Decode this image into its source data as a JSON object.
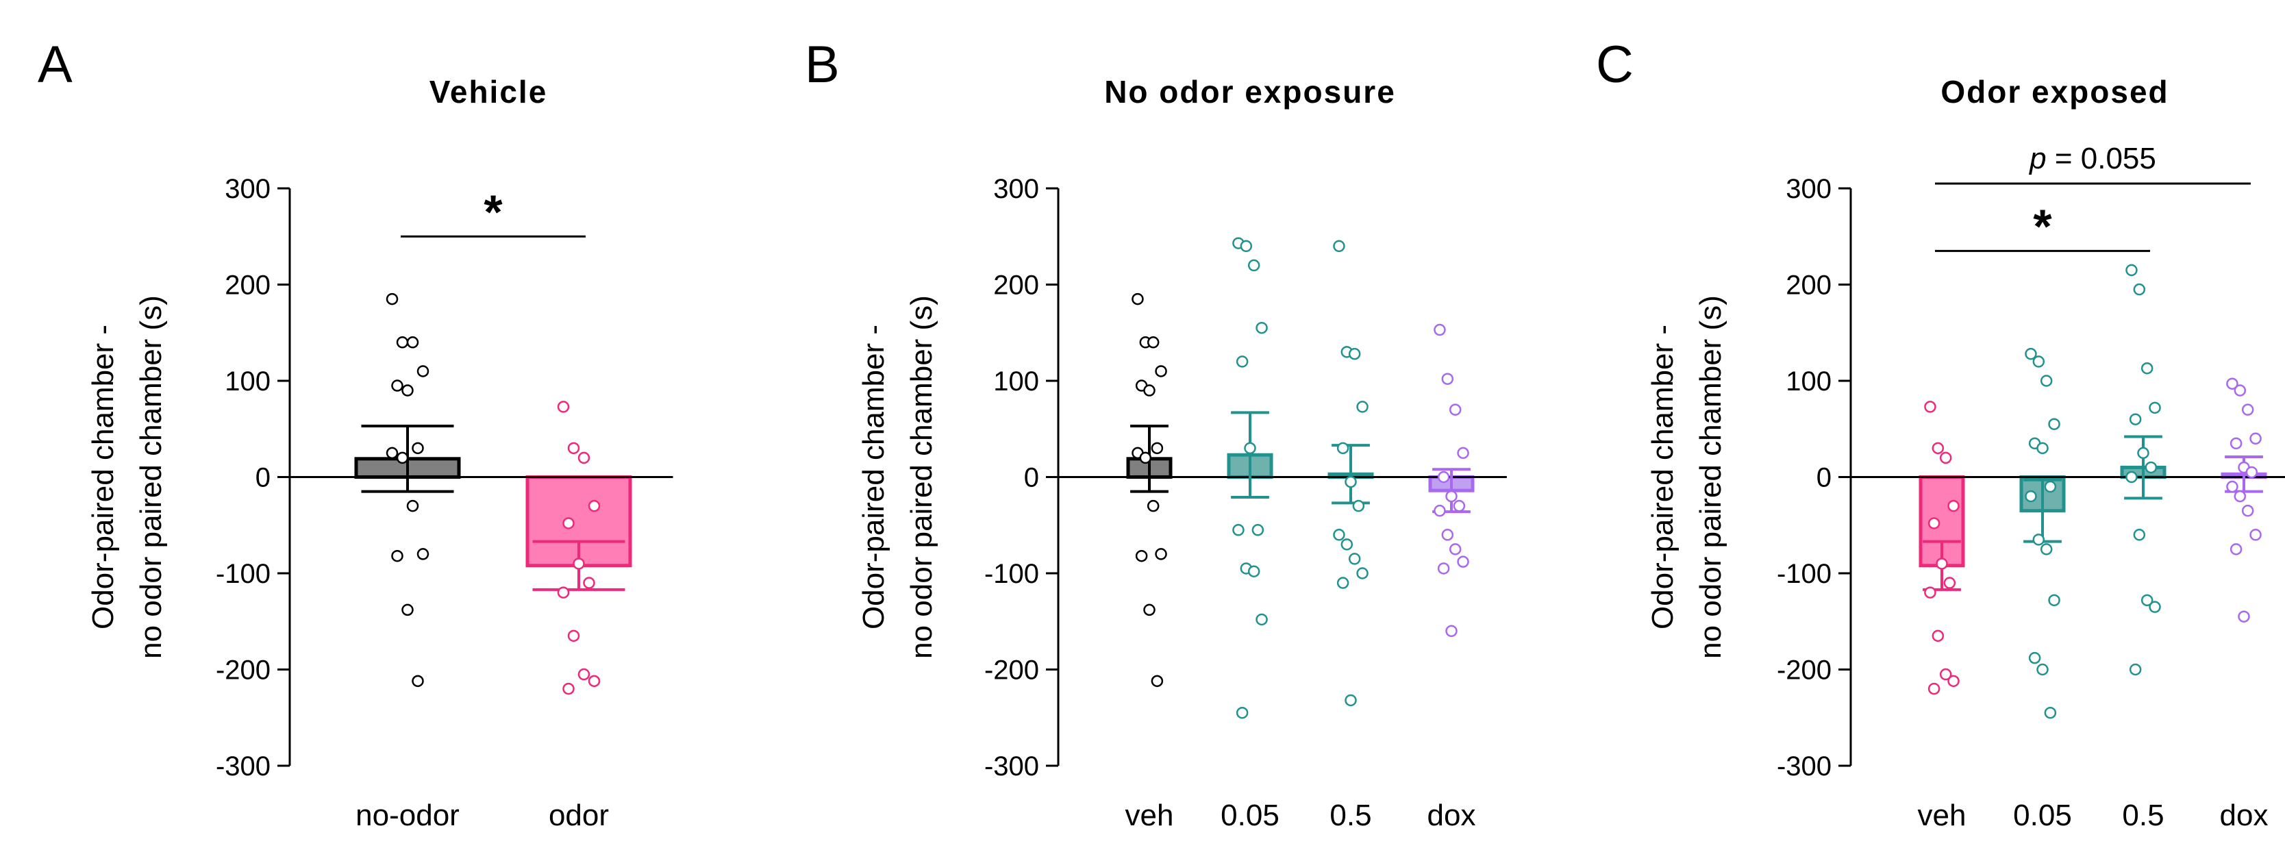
{
  "figure": {
    "y_axis_label_line1": "Odor-paired chamber -",
    "y_axis_label_line2": "no odor paired chamber (s)"
  },
  "chart_data": [
    {
      "type": "bar",
      "panel_letter": "A",
      "title": "Vehicle",
      "ylim": [
        -300,
        300
      ],
      "yticks": [
        300,
        200,
        100,
        0,
        -100,
        -200,
        -300
      ],
      "ytick_labels": [
        "300",
        "200",
        "100",
        "0",
        "-100",
        "-200",
        "-300"
      ],
      "categories": [
        "no-odor",
        "odor"
      ],
      "bars": [
        {
          "label": "no-odor",
          "mean": 19,
          "sem": 34,
          "fill": "#808080",
          "stroke": "#000000",
          "points": [
            185,
            140,
            140,
            110,
            95,
            90,
            30,
            25,
            20,
            -30,
            -80,
            -82,
            -138,
            -212
          ]
        },
        {
          "label": "odor",
          "mean": -92,
          "sem": 25,
          "fill": "#ff7eb6",
          "stroke": "#f0287a",
          "points": [
            73,
            30,
            20,
            -30,
            -48,
            -90,
            -110,
            -120,
            -165,
            -205,
            -212,
            -220
          ]
        }
      ],
      "significance": [
        {
          "from": "no-odor",
          "to": "odor",
          "text": "*",
          "y": 250
        }
      ]
    },
    {
      "type": "bar",
      "panel_letter": "B",
      "title": "No odor exposure",
      "ylim": [
        -300,
        300
      ],
      "yticks": [
        300,
        200,
        100,
        0,
        -100,
        -200,
        -300
      ],
      "ytick_labels": [
        "300",
        "200",
        "100",
        "0",
        "-100",
        "-200",
        "-300"
      ],
      "categories": [
        "veh",
        "0.05",
        "0.5",
        "dox"
      ],
      "bars": [
        {
          "label": "veh",
          "mean": 19,
          "sem": 34,
          "fill": "#808080",
          "stroke": "#000000",
          "points": [
            185,
            140,
            140,
            110,
            95,
            90,
            30,
            25,
            20,
            -30,
            -80,
            -82,
            -138,
            -212
          ]
        },
        {
          "label": "0.05",
          "mean": 23,
          "sem": 44,
          "fill": "#6fb2ad",
          "stroke": "#21928d",
          "points": [
            243,
            240,
            220,
            155,
            120,
            30,
            -55,
            -55,
            -95,
            -98,
            -148,
            -245
          ]
        },
        {
          "label": "0.5",
          "mean": 3,
          "sem": 30,
          "fill": "#6fb2ad",
          "stroke": "#21928d",
          "points": [
            240,
            130,
            128,
            73,
            30,
            -5,
            -30,
            -60,
            -70,
            -85,
            -100,
            -110,
            -232
          ]
        },
        {
          "label": "dox",
          "mean": -14,
          "sem": 22,
          "fill": "#c0a0f0",
          "stroke": "#a868f0",
          "points": [
            153,
            102,
            70,
            25,
            0,
            -20,
            -30,
            -35,
            -60,
            -75,
            -88,
            -95,
            -160
          ]
        }
      ],
      "significance": []
    },
    {
      "type": "bar",
      "panel_letter": "C",
      "title": "Odor exposed",
      "ylim": [
        -300,
        300
      ],
      "yticks": [
        300,
        200,
        100,
        0,
        -100,
        -200,
        -300
      ],
      "ytick_labels": [
        "300",
        "200",
        "100",
        "0",
        "-100",
        "-200",
        "-300"
      ],
      "categories": [
        "veh",
        "0.05",
        "0.5",
        "dox"
      ],
      "bars": [
        {
          "label": "veh",
          "mean": -92,
          "sem": 25,
          "fill": "#ff7eb6",
          "stroke": "#f0287a",
          "points": [
            73,
            30,
            20,
            -30,
            -48,
            -90,
            -110,
            -120,
            -165,
            -205,
            -212,
            -220
          ]
        },
        {
          "label": "0.05",
          "mean": -35,
          "sem": 32,
          "fill": "#6fb2ad",
          "stroke": "#21928d",
          "points": [
            128,
            120,
            100,
            55,
            35,
            30,
            -10,
            -20,
            -65,
            -75,
            -128,
            -188,
            -200,
            -245
          ]
        },
        {
          "label": "0.5",
          "mean": 10,
          "sem": 32,
          "fill": "#6fb2ad",
          "stroke": "#21928d",
          "points": [
            215,
            195,
            113,
            72,
            60,
            25,
            10,
            0,
            -60,
            -128,
            -135,
            -200
          ]
        },
        {
          "label": "dox",
          "mean": 3,
          "sem": 18,
          "fill": "#c0a0f0",
          "stroke": "#a868f0",
          "points": [
            97,
            90,
            70,
            40,
            35,
            10,
            5,
            -10,
            -20,
            -35,
            -60,
            -75,
            -145
          ]
        }
      ],
      "significance": [
        {
          "from": "veh",
          "to": "0.5",
          "text": "*",
          "y": 235
        },
        {
          "from": "veh",
          "to": "dox",
          "text_prefix": "p",
          "text": " = 0.055",
          "y": 305
        }
      ]
    }
  ]
}
